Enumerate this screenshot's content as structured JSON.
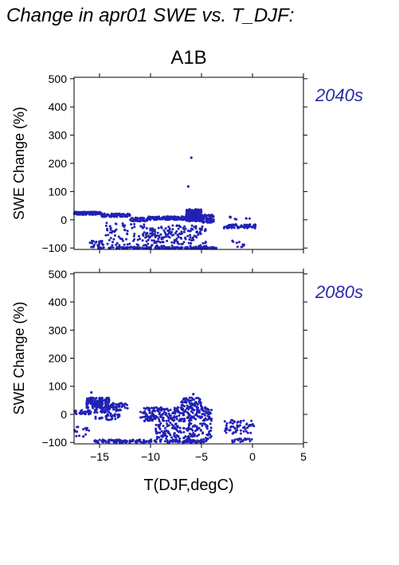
{
  "page": {
    "heading": "Change in apr01 SWE vs. T_DJF:",
    "scenario": "A1B"
  },
  "colors": {
    "points": "#2121b5",
    "decade_label": "#2a2aa8",
    "axes": "#000000"
  },
  "chart_data": [
    {
      "type": "scatter",
      "panel_label": "2040s",
      "title": "",
      "xlabel": "T(DJF,degC)",
      "ylabel": "SWE Change (%)",
      "xlim": [
        -17.5,
        5
      ],
      "ylim": [
        -105,
        505
      ],
      "x_ticks": [
        -15,
        -10,
        -5,
        0,
        5
      ],
      "y_ticks": [
        -100,
        0,
        100,
        200,
        300,
        400,
        500
      ],
      "x_tick_labels": [
        "",
        "",
        "",
        "",
        ""
      ],
      "y_tick_labels": [
        "−100",
        "0",
        "100",
        "200",
        "300",
        "400",
        "500"
      ],
      "grid": false,
      "outliers": [
        [
          -6.0,
          220
        ],
        [
          -6.3,
          118
        ]
      ],
      "clusters": [
        {
          "x": [
            -17.5,
            -14.8
          ],
          "y": [
            18,
            28
          ],
          "n": 150
        },
        {
          "x": [
            -14.8,
            -12.0
          ],
          "y": [
            10,
            22
          ],
          "n": 70
        },
        {
          "x": [
            -12.0,
            -10.3
          ],
          "y": [
            -5,
            8
          ],
          "n": 40
        },
        {
          "x": [
            -10.3,
            -6.5
          ],
          "y": [
            0,
            12
          ],
          "n": 160
        },
        {
          "x": [
            -6.5,
            -5.0
          ],
          "y": [
            -5,
            38
          ],
          "n": 200
        },
        {
          "x": [
            -5.0,
            -3.8
          ],
          "y": [
            -10,
            18
          ],
          "n": 80
        },
        {
          "x": [
            -2.8,
            0.3
          ],
          "y": [
            -30,
            -15
          ],
          "n": 70
        },
        {
          "x": [
            -2.5,
            0.0
          ],
          "y": [
            0,
            12
          ],
          "n": 8
        },
        {
          "x": [
            -16.0,
            -14.5
          ],
          "y": [
            -100,
            -75
          ],
          "n": 30
        },
        {
          "x": [
            -14.5,
            -10.5
          ],
          "y": [
            -100,
            -10
          ],
          "n": 80
        },
        {
          "x": [
            -10.5,
            -4.5
          ],
          "y": [
            -100,
            -20
          ],
          "n": 180
        },
        {
          "x": [
            -14.0,
            -3.5
          ],
          "y": [
            -102,
            -97
          ],
          "n": 160
        },
        {
          "x": [
            -2.0,
            -0.8
          ],
          "y": [
            -100,
            -70
          ],
          "n": 10
        }
      ]
    },
    {
      "type": "scatter",
      "panel_label": "2080s",
      "title": "",
      "xlabel": "T(DJF,degC)",
      "ylabel": "SWE Change (%)",
      "xlim": [
        -17.5,
        5
      ],
      "ylim": [
        -105,
        505
      ],
      "x_ticks": [
        -15,
        -10,
        -5,
        0,
        5
      ],
      "y_ticks": [
        -100,
        0,
        100,
        200,
        300,
        400,
        500
      ],
      "x_tick_labels": [
        "−15",
        "−10",
        "−5",
        "0",
        "5"
      ],
      "y_tick_labels": [
        "−100",
        "0",
        "100",
        "200",
        "300",
        "400",
        "500"
      ],
      "grid": false,
      "outliers": [
        [
          -15.8,
          78
        ],
        [
          -5.8,
          72
        ]
      ],
      "clusters": [
        {
          "x": [
            -17.5,
            -15.8
          ],
          "y": [
            0,
            15
          ],
          "n": 40
        },
        {
          "x": [
            -16.3,
            -14.0
          ],
          "y": [
            20,
            60
          ],
          "n": 150
        },
        {
          "x": [
            -14.0,
            -12.2
          ],
          "y": [
            15,
            40
          ],
          "n": 40
        },
        {
          "x": [
            -15.5,
            -13.0
          ],
          "y": [
            -20,
            20
          ],
          "n": 60
        },
        {
          "x": [
            -11.0,
            -4.0
          ],
          "y": [
            -25,
            25
          ],
          "n": 260
        },
        {
          "x": [
            -7.0,
            -5.0
          ],
          "y": [
            20,
            60
          ],
          "n": 60
        },
        {
          "x": [
            -9.5,
            -4.0
          ],
          "y": [
            -90,
            -30
          ],
          "n": 160
        },
        {
          "x": [
            -15.5,
            -4.5
          ],
          "y": [
            -100,
            -90
          ],
          "n": 170
        },
        {
          "x": [
            -17.5,
            -16.0
          ],
          "y": [
            -80,
            -40
          ],
          "n": 15
        },
        {
          "x": [
            -2.8,
            0.2
          ],
          "y": [
            -70,
            -20
          ],
          "n": 60
        },
        {
          "x": [
            -2.0,
            0.0
          ],
          "y": [
            -100,
            -85
          ],
          "n": 20
        }
      ]
    }
  ]
}
